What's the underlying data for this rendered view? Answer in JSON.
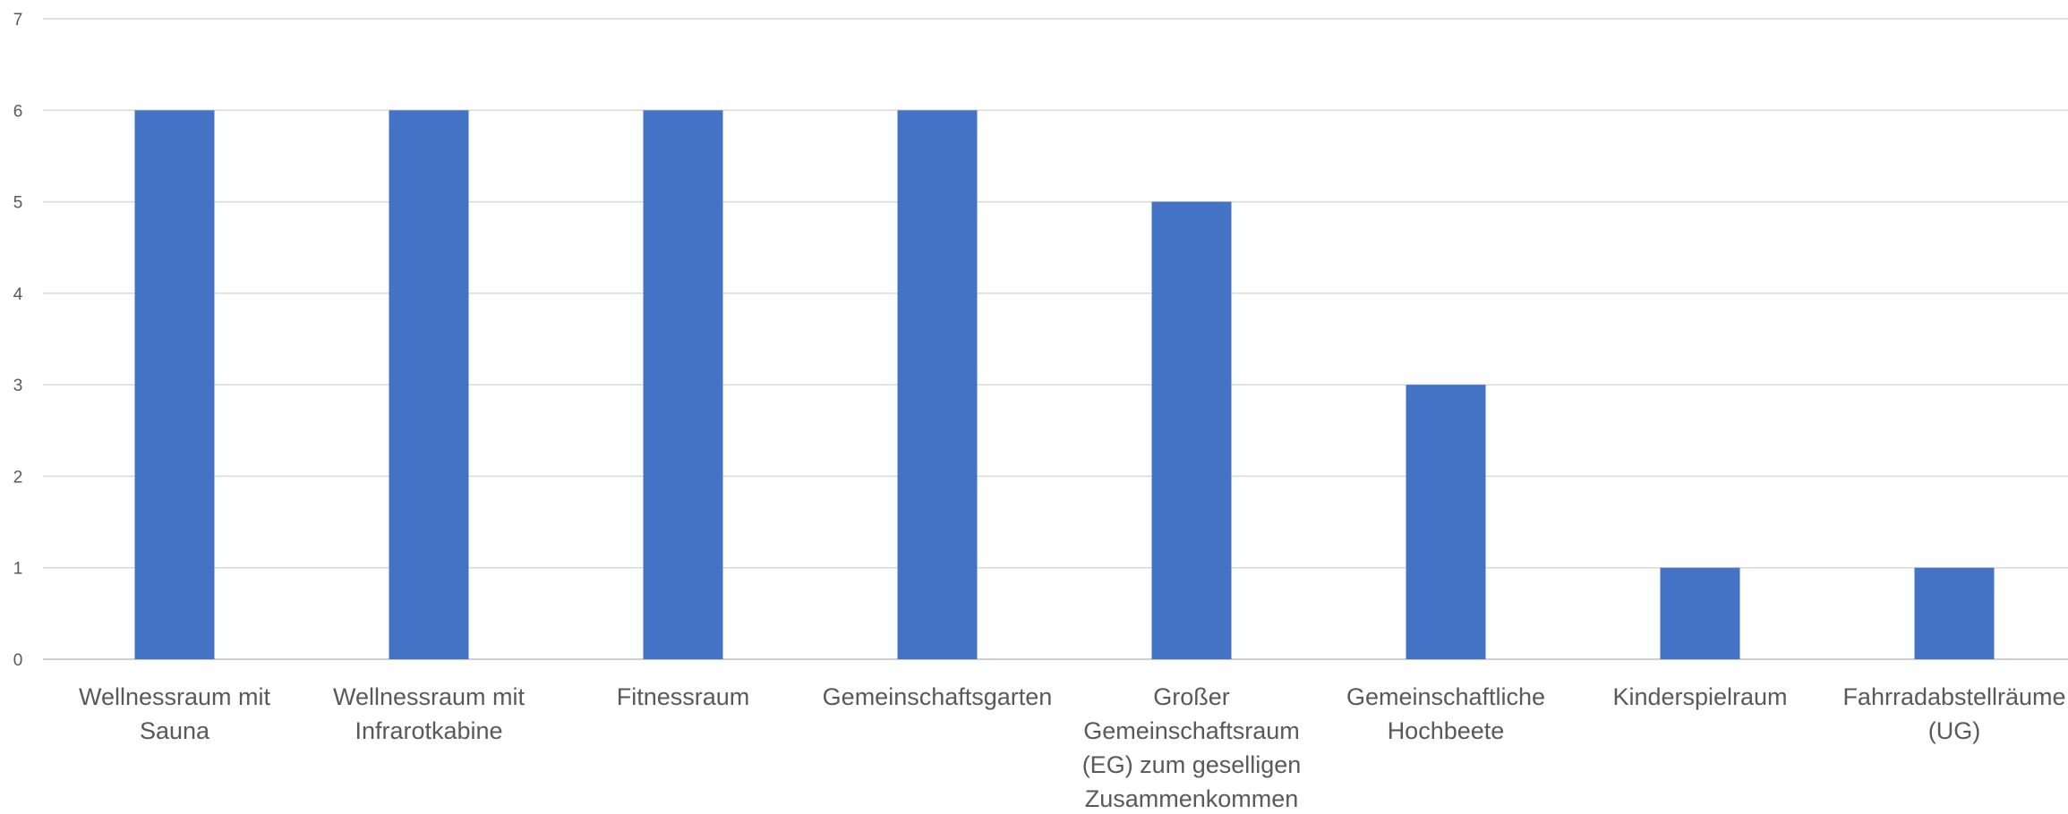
{
  "chart_data": {
    "type": "bar",
    "categories": [
      "Wellnessraum mit Sauna",
      "Wellnessraum mit Infrarotkabine",
      "Fitnessraum",
      "Gemeinschaftsgarten",
      "Großer Gemeinschaftsraum (EG) zum geselligen Zusammenkommen",
      "Gemeinschaftliche Hochbeete",
      "Kinderspielraum",
      "Fahrradabstellräume (UG)"
    ],
    "category_label_lines": [
      [
        "Wellnessraum mit",
        "Sauna"
      ],
      [
        "Wellnessraum mit",
        "Infrarotkabine"
      ],
      [
        "Fitnessraum"
      ],
      [
        "Gemeinschaftsgarten"
      ],
      [
        "Großer",
        "Gemeinschaftsraum",
        "(EG) zum geselligen",
        "Zusammenkommen"
      ],
      [
        "Gemeinschaftliche",
        "Hochbeete"
      ],
      [
        "Kinderspielraum"
      ],
      [
        "Fahrradabstellräume",
        "(UG)"
      ]
    ],
    "values": [
      6,
      6,
      6,
      6,
      5,
      3,
      1,
      1
    ],
    "ylim": [
      0,
      7
    ],
    "yticks": [
      0,
      1,
      2,
      3,
      4,
      5,
      6,
      7
    ],
    "grid": true,
    "bar_color": "#4472c4",
    "title": "",
    "xlabel": "",
    "ylabel": ""
  }
}
